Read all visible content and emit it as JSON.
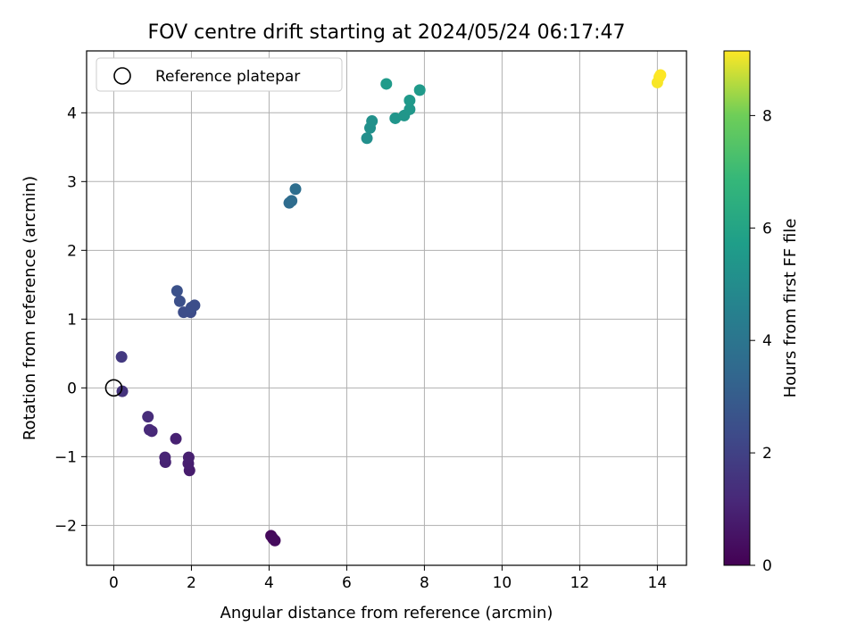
{
  "chart_data": {
    "type": "scatter",
    "title": "FOV centre drift starting at 2024/05/24 06:17:47",
    "xlabel": "Angular distance from reference (arcmin)",
    "ylabel": "Rotation from reference (arcmin)",
    "xlim": [
      -0.7,
      14.75
    ],
    "ylim": [
      -2.58,
      4.9
    ],
    "xticks": [
      0,
      2,
      4,
      6,
      8,
      10,
      12,
      14
    ],
    "yticks": [
      -2,
      -1,
      0,
      1,
      2,
      3,
      4
    ],
    "grid": true,
    "legend": {
      "placement": "upper-left",
      "entries": [
        "Reference platepar"
      ]
    },
    "reference": {
      "x": 0,
      "y": 0
    },
    "colorbar": {
      "label": "Hours from first FF file",
      "range": [
        0,
        9.15
      ],
      "ticks": [
        0,
        2,
        4,
        6,
        8
      ],
      "colormap": "viridis"
    },
    "points": [
      {
        "x": 4.05,
        "y": -2.15,
        "hours": 0.2
      },
      {
        "x": 4.1,
        "y": -2.19,
        "hours": 0.25
      },
      {
        "x": 4.15,
        "y": -2.22,
        "hours": 0.3
      },
      {
        "x": 1.95,
        "y": -1.2,
        "hours": 0.8
      },
      {
        "x": 1.92,
        "y": -1.1,
        "hours": 0.85
      },
      {
        "x": 1.93,
        "y": -1.01,
        "hours": 0.9
      },
      {
        "x": 1.6,
        "y": -0.74,
        "hours": 0.95
      },
      {
        "x": 1.33,
        "y": -1.08,
        "hours": 1.0
      },
      {
        "x": 1.32,
        "y": -1.01,
        "hours": 1.05
      },
      {
        "x": 0.98,
        "y": -0.63,
        "hours": 1.15
      },
      {
        "x": 0.92,
        "y": -0.61,
        "hours": 1.2
      },
      {
        "x": 0.88,
        "y": -0.42,
        "hours": 1.3
      },
      {
        "x": 0.22,
        "y": -0.05,
        "hours": 1.5
      },
      {
        "x": 0.2,
        "y": 0.45,
        "hours": 1.7
      },
      {
        "x": 1.98,
        "y": 1.1,
        "hours": 2.35
      },
      {
        "x": 1.8,
        "y": 1.1,
        "hours": 2.4
      },
      {
        "x": 2.0,
        "y": 1.17,
        "hours": 2.45
      },
      {
        "x": 2.08,
        "y": 1.2,
        "hours": 2.45
      },
      {
        "x": 1.7,
        "y": 1.26,
        "hours": 2.5
      },
      {
        "x": 1.63,
        "y": 1.41,
        "hours": 2.55
      },
      {
        "x": 4.52,
        "y": 2.69,
        "hours": 3.6
      },
      {
        "x": 4.58,
        "y": 2.72,
        "hours": 3.65
      },
      {
        "x": 4.68,
        "y": 2.89,
        "hours": 3.7
      },
      {
        "x": 6.52,
        "y": 3.63,
        "hours": 5.1
      },
      {
        "x": 6.6,
        "y": 3.78,
        "hours": 5.15
      },
      {
        "x": 6.65,
        "y": 3.88,
        "hours": 5.2
      },
      {
        "x": 7.25,
        "y": 3.92,
        "hours": 5.35
      },
      {
        "x": 7.48,
        "y": 3.96,
        "hours": 5.4
      },
      {
        "x": 7.62,
        "y": 4.05,
        "hours": 5.45
      },
      {
        "x": 7.62,
        "y": 4.18,
        "hours": 5.5
      },
      {
        "x": 7.88,
        "y": 4.33,
        "hours": 5.55
      },
      {
        "x": 7.02,
        "y": 4.42,
        "hours": 5.6
      },
      {
        "x": 14.0,
        "y": 4.44,
        "hours": 9.1
      },
      {
        "x": 14.05,
        "y": 4.52,
        "hours": 9.12
      },
      {
        "x": 14.08,
        "y": 4.55,
        "hours": 9.15
      }
    ]
  }
}
